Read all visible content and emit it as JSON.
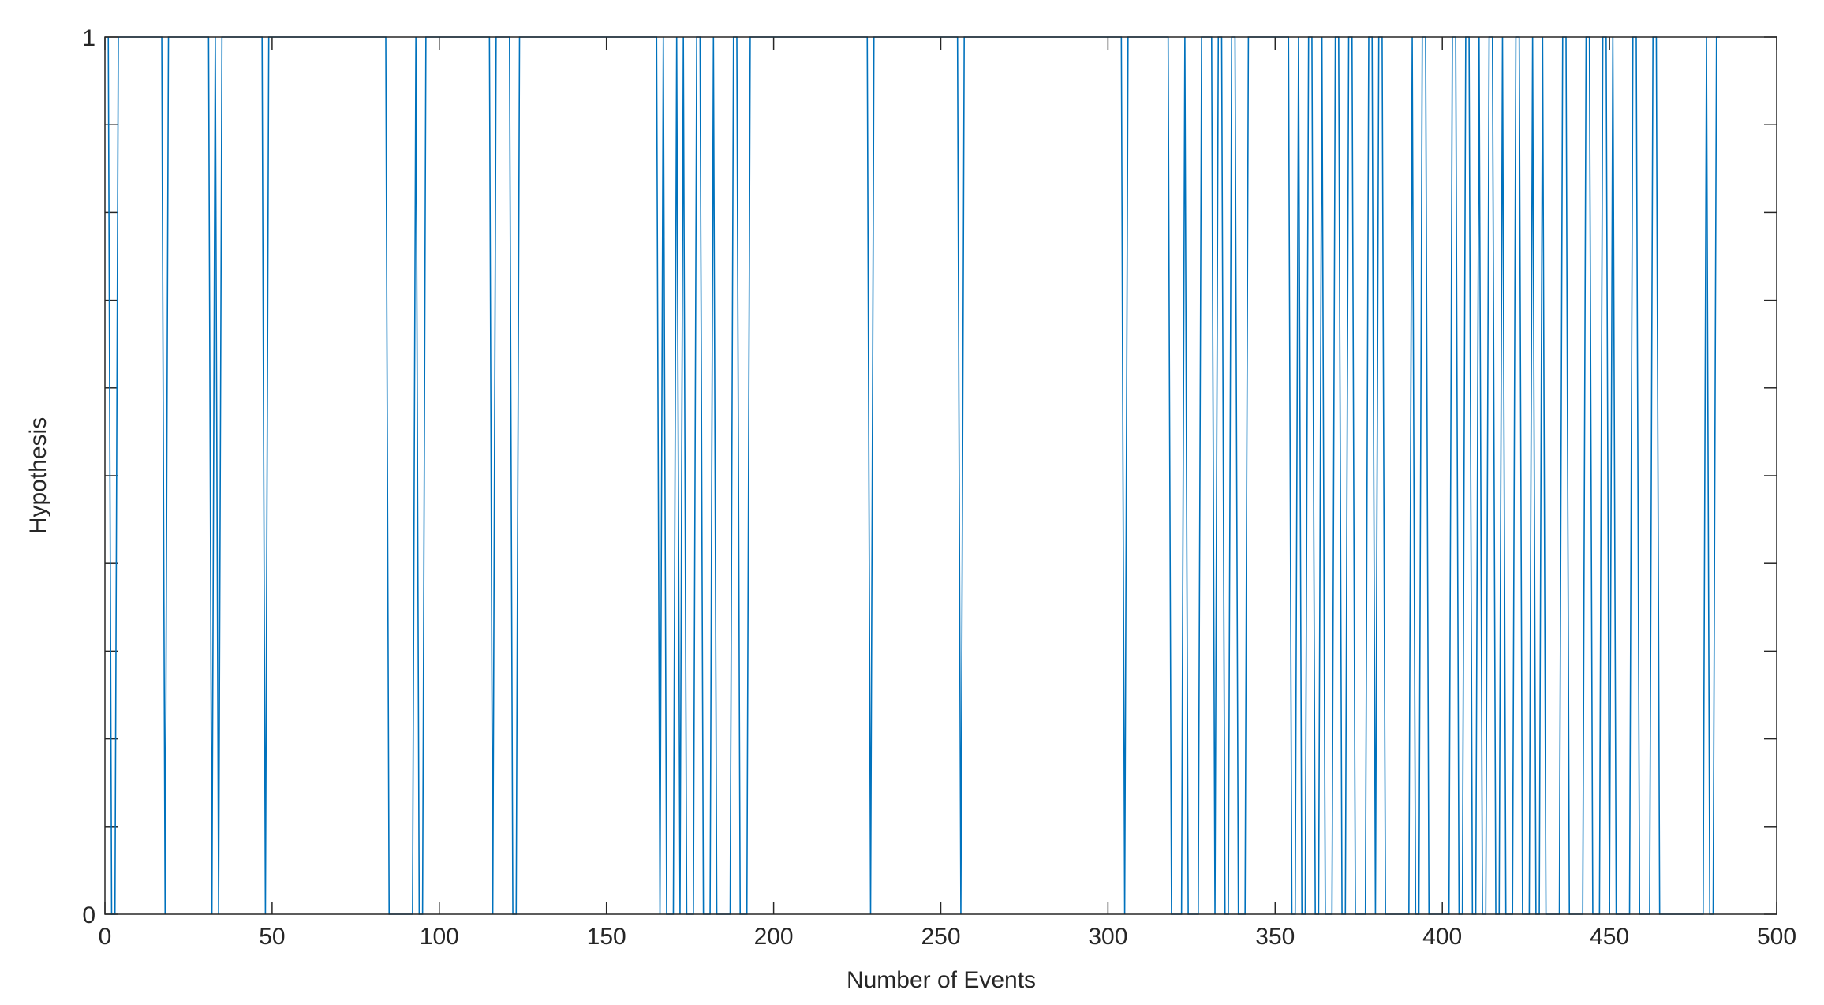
{
  "chart_data": {
    "type": "line",
    "xlabel": "Number of Events",
    "ylabel": "Hypothesis",
    "xlim": [
      0,
      500
    ],
    "ylim": [
      0,
      1
    ],
    "xticks": [
      0,
      50,
      100,
      150,
      200,
      250,
      300,
      350,
      400,
      450,
      500
    ],
    "yticks": [
      0,
      1
    ],
    "y_minor_ticks": [
      0.1,
      0.2,
      0.3,
      0.4,
      0.5,
      0.6,
      0.7,
      0.8,
      0.9
    ],
    "series": [
      {
        "color": "#0072bd",
        "x": [
          1,
          2,
          3,
          4,
          17,
          18,
          19,
          31,
          32,
          33,
          34,
          35,
          47,
          48,
          49,
          84,
          85,
          92,
          93,
          94,
          95,
          96,
          115,
          116,
          117,
          121,
          122,
          123,
          124,
          165,
          166,
          167,
          168,
          170,
          171,
          172,
          173,
          174,
          176,
          177,
          178,
          179,
          181,
          182,
          183,
          187,
          188,
          189,
          190,
          192,
          193,
          228,
          229,
          230,
          255,
          256,
          257,
          304,
          305,
          306,
          318,
          319,
          322,
          323,
          324,
          327,
          328,
          331,
          332,
          333,
          334,
          335,
          336,
          337,
          338,
          339,
          341,
          342,
          354,
          355,
          356,
          357,
          358,
          359,
          360,
          361,
          362,
          363,
          364,
          365,
          367,
          368,
          369,
          370,
          371,
          372,
          373,
          374,
          377,
          378,
          379,
          380,
          381,
          382,
          383,
          390,
          391,
          392,
          393,
          394,
          395,
          396,
          402,
          403,
          404,
          405,
          406,
          407,
          408,
          409,
          410,
          411,
          412,
          413,
          414,
          415,
          416,
          417,
          418,
          419,
          421,
          422,
          423,
          424,
          426,
          427,
          428,
          429,
          430,
          431,
          435,
          436,
          437,
          438,
          442,
          443,
          444,
          445,
          447,
          448,
          449,
          450,
          451,
          452,
          456,
          457,
          458,
          459,
          462,
          463,
          464,
          465,
          478,
          479,
          480,
          481,
          482,
          483
        ],
        "values": [
          1,
          0,
          0,
          1,
          1,
          0,
          1,
          1,
          0,
          1,
          0,
          1,
          1,
          0,
          1,
          1,
          0,
          0,
          1,
          0,
          0,
          1,
          1,
          0,
          1,
          1,
          0,
          0,
          1,
          1,
          0,
          1,
          0,
          0,
          1,
          0,
          1,
          0,
          0,
          1,
          1,
          0,
          0,
          1,
          0,
          0,
          1,
          1,
          0,
          0,
          1,
          1,
          0,
          1,
          1,
          0,
          1,
          1,
          0,
          1,
          1,
          0,
          0,
          1,
          0,
          0,
          1,
          1,
          0,
          1,
          1,
          0,
          0,
          1,
          1,
          0,
          0,
          1,
          1,
          0,
          0,
          1,
          0,
          0,
          1,
          1,
          0,
          0,
          1,
          0,
          0,
          1,
          1,
          0,
          0,
          1,
          1,
          0,
          0,
          1,
          1,
          0,
          1,
          1,
          0,
          0,
          1,
          0,
          0,
          1,
          1,
          0,
          0,
          1,
          1,
          0,
          0,
          1,
          1,
          0,
          0,
          1,
          0,
          0,
          1,
          1,
          0,
          0,
          1,
          0,
          0,
          1,
          1,
          0,
          0,
          1,
          0,
          0,
          1,
          0,
          0,
          1,
          1,
          0,
          0,
          1,
          1,
          0,
          0,
          1,
          1,
          0,
          1,
          0,
          0,
          1,
          1,
          0,
          0,
          1,
          1,
          0,
          0,
          1,
          0,
          0,
          1,
          1
        ]
      }
    ]
  }
}
